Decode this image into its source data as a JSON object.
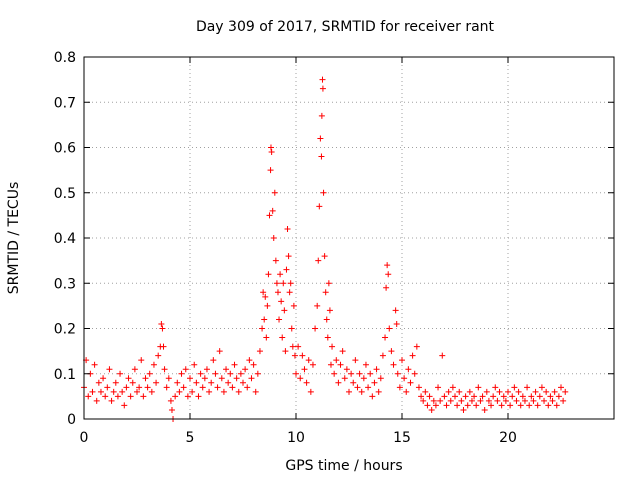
{
  "chart_data": {
    "type": "scatter",
    "title": "Day 309 of 2017, SRMTID for receiver rant",
    "xlabel": "GPS time / hours",
    "ylabel": "SRMTID / TECUs",
    "xlim": [
      0,
      25
    ],
    "ylim": [
      0,
      0.8
    ],
    "xticks": [
      0,
      5,
      10,
      15,
      20
    ],
    "yticks": [
      0,
      0.1,
      0.2,
      0.3,
      0.4,
      0.5,
      0.6,
      0.7,
      0.8
    ],
    "grid": true,
    "marker": "plus",
    "color": "#ff0000",
    "series": [
      {
        "name": "SRMTID",
        "points": [
          [
            0.0,
            0.07
          ],
          [
            0.1,
            0.13
          ],
          [
            0.2,
            0.05
          ],
          [
            0.3,
            0.1
          ],
          [
            0.4,
            0.06
          ],
          [
            0.5,
            0.12
          ],
          [
            0.6,
            0.04
          ],
          [
            0.7,
            0.08
          ],
          [
            0.8,
            0.06
          ],
          [
            0.9,
            0.09
          ],
          [
            1.0,
            0.05
          ],
          [
            1.1,
            0.07
          ],
          [
            1.2,
            0.11
          ],
          [
            1.3,
            0.04
          ],
          [
            1.4,
            0.06
          ],
          [
            1.5,
            0.08
          ],
          [
            1.6,
            0.05
          ],
          [
            1.7,
            0.1
          ],
          [
            1.8,
            0.06
          ],
          [
            1.9,
            0.03
          ],
          [
            2.0,
            0.07
          ],
          [
            2.1,
            0.09
          ],
          [
            2.2,
            0.05
          ],
          [
            2.3,
            0.08
          ],
          [
            2.4,
            0.11
          ],
          [
            2.5,
            0.06
          ],
          [
            2.6,
            0.07
          ],
          [
            2.7,
            0.13
          ],
          [
            2.8,
            0.05
          ],
          [
            2.9,
            0.09
          ],
          [
            3.0,
            0.07
          ],
          [
            3.1,
            0.1
          ],
          [
            3.2,
            0.06
          ],
          [
            3.3,
            0.12
          ],
          [
            3.4,
            0.08
          ],
          [
            3.5,
            0.14
          ],
          [
            3.6,
            0.16
          ],
          [
            3.65,
            0.21
          ],
          [
            3.7,
            0.2
          ],
          [
            3.75,
            0.16
          ],
          [
            3.8,
            0.11
          ],
          [
            3.9,
            0.07
          ],
          [
            4.0,
            0.09
          ],
          [
            4.1,
            0.04
          ],
          [
            4.15,
            0.02
          ],
          [
            4.2,
            0.0
          ],
          [
            4.3,
            0.05
          ],
          [
            4.4,
            0.08
          ],
          [
            4.5,
            0.06
          ],
          [
            4.6,
            0.1
          ],
          [
            4.7,
            0.07
          ],
          [
            4.8,
            0.11
          ],
          [
            4.9,
            0.05
          ],
          [
            5.0,
            0.09
          ],
          [
            5.1,
            0.06
          ],
          [
            5.2,
            0.12
          ],
          [
            5.3,
            0.08
          ],
          [
            5.4,
            0.05
          ],
          [
            5.5,
            0.1
          ],
          [
            5.6,
            0.07
          ],
          [
            5.7,
            0.09
          ],
          [
            5.8,
            0.11
          ],
          [
            5.9,
            0.06
          ],
          [
            6.0,
            0.08
          ],
          [
            6.1,
            0.13
          ],
          [
            6.2,
            0.1
          ],
          [
            6.3,
            0.07
          ],
          [
            6.4,
            0.15
          ],
          [
            6.5,
            0.09
          ],
          [
            6.6,
            0.06
          ],
          [
            6.7,
            0.11
          ],
          [
            6.8,
            0.08
          ],
          [
            6.9,
            0.1
          ],
          [
            7.0,
            0.07
          ],
          [
            7.1,
            0.12
          ],
          [
            7.2,
            0.09
          ],
          [
            7.3,
            0.06
          ],
          [
            7.4,
            0.1
          ],
          [
            7.5,
            0.08
          ],
          [
            7.6,
            0.11
          ],
          [
            7.7,
            0.07
          ],
          [
            7.8,
            0.13
          ],
          [
            7.9,
            0.09
          ],
          [
            8.0,
            0.12
          ],
          [
            8.1,
            0.06
          ],
          [
            8.2,
            0.1
          ],
          [
            8.3,
            0.15
          ],
          [
            8.4,
            0.2
          ],
          [
            8.45,
            0.28
          ],
          [
            8.5,
            0.22
          ],
          [
            8.55,
            0.27
          ],
          [
            8.6,
            0.18
          ],
          [
            8.65,
            0.25
          ],
          [
            8.7,
            0.32
          ],
          [
            8.75,
            0.45
          ],
          [
            8.8,
            0.55
          ],
          [
            8.82,
            0.6
          ],
          [
            8.85,
            0.59
          ],
          [
            8.9,
            0.46
          ],
          [
            8.95,
            0.4
          ],
          [
            9.0,
            0.5
          ],
          [
            9.05,
            0.35
          ],
          [
            9.1,
            0.3
          ],
          [
            9.15,
            0.28
          ],
          [
            9.2,
            0.22
          ],
          [
            9.25,
            0.32
          ],
          [
            9.3,
            0.26
          ],
          [
            9.35,
            0.18
          ],
          [
            9.4,
            0.3
          ],
          [
            9.45,
            0.24
          ],
          [
            9.5,
            0.15
          ],
          [
            9.55,
            0.33
          ],
          [
            9.6,
            0.42
          ],
          [
            9.65,
            0.36
          ],
          [
            9.7,
            0.28
          ],
          [
            9.75,
            0.3
          ],
          [
            9.8,
            0.2
          ],
          [
            9.85,
            0.16
          ],
          [
            9.9,
            0.25
          ],
          [
            9.95,
            0.14
          ],
          [
            10.0,
            0.1
          ],
          [
            10.1,
            0.16
          ],
          [
            10.2,
            0.09
          ],
          [
            10.3,
            0.14
          ],
          [
            10.4,
            0.11
          ],
          [
            10.5,
            0.08
          ],
          [
            10.6,
            0.13
          ],
          [
            10.7,
            0.06
          ],
          [
            10.8,
            0.12
          ],
          [
            10.9,
            0.2
          ],
          [
            11.0,
            0.25
          ],
          [
            11.05,
            0.35
          ],
          [
            11.1,
            0.47
          ],
          [
            11.15,
            0.62
          ],
          [
            11.2,
            0.58
          ],
          [
            11.22,
            0.67
          ],
          [
            11.25,
            0.75
          ],
          [
            11.27,
            0.73
          ],
          [
            11.3,
            0.5
          ],
          [
            11.35,
            0.36
          ],
          [
            11.4,
            0.28
          ],
          [
            11.45,
            0.22
          ],
          [
            11.5,
            0.18
          ],
          [
            11.55,
            0.3
          ],
          [
            11.6,
            0.24
          ],
          [
            11.65,
            0.12
          ],
          [
            11.7,
            0.16
          ],
          [
            11.8,
            0.1
          ],
          [
            11.9,
            0.13
          ],
          [
            12.0,
            0.08
          ],
          [
            12.1,
            0.12
          ],
          [
            12.2,
            0.15
          ],
          [
            12.3,
            0.09
          ],
          [
            12.4,
            0.11
          ],
          [
            12.5,
            0.06
          ],
          [
            12.6,
            0.1
          ],
          [
            12.7,
            0.08
          ],
          [
            12.8,
            0.13
          ],
          [
            12.9,
            0.07
          ],
          [
            13.0,
            0.1
          ],
          [
            13.1,
            0.06
          ],
          [
            13.2,
            0.09
          ],
          [
            13.3,
            0.12
          ],
          [
            13.4,
            0.07
          ],
          [
            13.5,
            0.1
          ],
          [
            13.6,
            0.05
          ],
          [
            13.7,
            0.08
          ],
          [
            13.8,
            0.11
          ],
          [
            13.9,
            0.06
          ],
          [
            14.0,
            0.09
          ],
          [
            14.1,
            0.14
          ],
          [
            14.2,
            0.18
          ],
          [
            14.25,
            0.29
          ],
          [
            14.3,
            0.34
          ],
          [
            14.35,
            0.32
          ],
          [
            14.4,
            0.2
          ],
          [
            14.5,
            0.15
          ],
          [
            14.6,
            0.12
          ],
          [
            14.7,
            0.24
          ],
          [
            14.75,
            0.21
          ],
          [
            14.8,
            0.1
          ],
          [
            14.9,
            0.07
          ],
          [
            15.0,
            0.13
          ],
          [
            15.1,
            0.09
          ],
          [
            15.2,
            0.06
          ],
          [
            15.3,
            0.11
          ],
          [
            15.4,
            0.08
          ],
          [
            15.5,
            0.14
          ],
          [
            15.6,
            0.1
          ],
          [
            15.7,
            0.16
          ],
          [
            15.8,
            0.07
          ],
          [
            15.9,
            0.05
          ],
          [
            16.0,
            0.04
          ],
          [
            16.1,
            0.06
          ],
          [
            16.2,
            0.03
          ],
          [
            16.3,
            0.05
          ],
          [
            16.4,
            0.02
          ],
          [
            16.5,
            0.04
          ],
          [
            16.6,
            0.03
          ],
          [
            16.7,
            0.07
          ],
          [
            16.8,
            0.04
          ],
          [
            16.9,
            0.14
          ],
          [
            17.0,
            0.05
          ],
          [
            17.1,
            0.03
          ],
          [
            17.2,
            0.06
          ],
          [
            17.3,
            0.04
          ],
          [
            17.4,
            0.07
          ],
          [
            17.5,
            0.05
          ],
          [
            17.6,
            0.03
          ],
          [
            17.7,
            0.06
          ],
          [
            17.8,
            0.04
          ],
          [
            17.9,
            0.02
          ],
          [
            18.0,
            0.05
          ],
          [
            18.1,
            0.03
          ],
          [
            18.2,
            0.06
          ],
          [
            18.3,
            0.04
          ],
          [
            18.4,
            0.05
          ],
          [
            18.5,
            0.03
          ],
          [
            18.6,
            0.07
          ],
          [
            18.7,
            0.04
          ],
          [
            18.8,
            0.05
          ],
          [
            18.9,
            0.02
          ],
          [
            19.0,
            0.06
          ],
          [
            19.1,
            0.04
          ],
          [
            19.2,
            0.03
          ],
          [
            19.3,
            0.05
          ],
          [
            19.4,
            0.07
          ],
          [
            19.5,
            0.04
          ],
          [
            19.6,
            0.06
          ],
          [
            19.7,
            0.03
          ],
          [
            19.8,
            0.05
          ],
          [
            19.9,
            0.04
          ],
          [
            20.0,
            0.06
          ],
          [
            20.1,
            0.03
          ],
          [
            20.2,
            0.05
          ],
          [
            20.3,
            0.07
          ],
          [
            20.4,
            0.04
          ],
          [
            20.5,
            0.06
          ],
          [
            20.6,
            0.03
          ],
          [
            20.7,
            0.05
          ],
          [
            20.8,
            0.04
          ],
          [
            20.9,
            0.07
          ],
          [
            21.0,
            0.03
          ],
          [
            21.1,
            0.05
          ],
          [
            21.2,
            0.04
          ],
          [
            21.3,
            0.06
          ],
          [
            21.4,
            0.03
          ],
          [
            21.5,
            0.05
          ],
          [
            21.6,
            0.07
          ],
          [
            21.7,
            0.04
          ],
          [
            21.8,
            0.06
          ],
          [
            21.9,
            0.03
          ],
          [
            22.0,
            0.05
          ],
          [
            22.1,
            0.04
          ],
          [
            22.2,
            0.06
          ],
          [
            22.3,
            0.03
          ],
          [
            22.4,
            0.05
          ],
          [
            22.5,
            0.07
          ],
          [
            22.6,
            0.04
          ],
          [
            22.7,
            0.06
          ]
        ]
      }
    ]
  }
}
